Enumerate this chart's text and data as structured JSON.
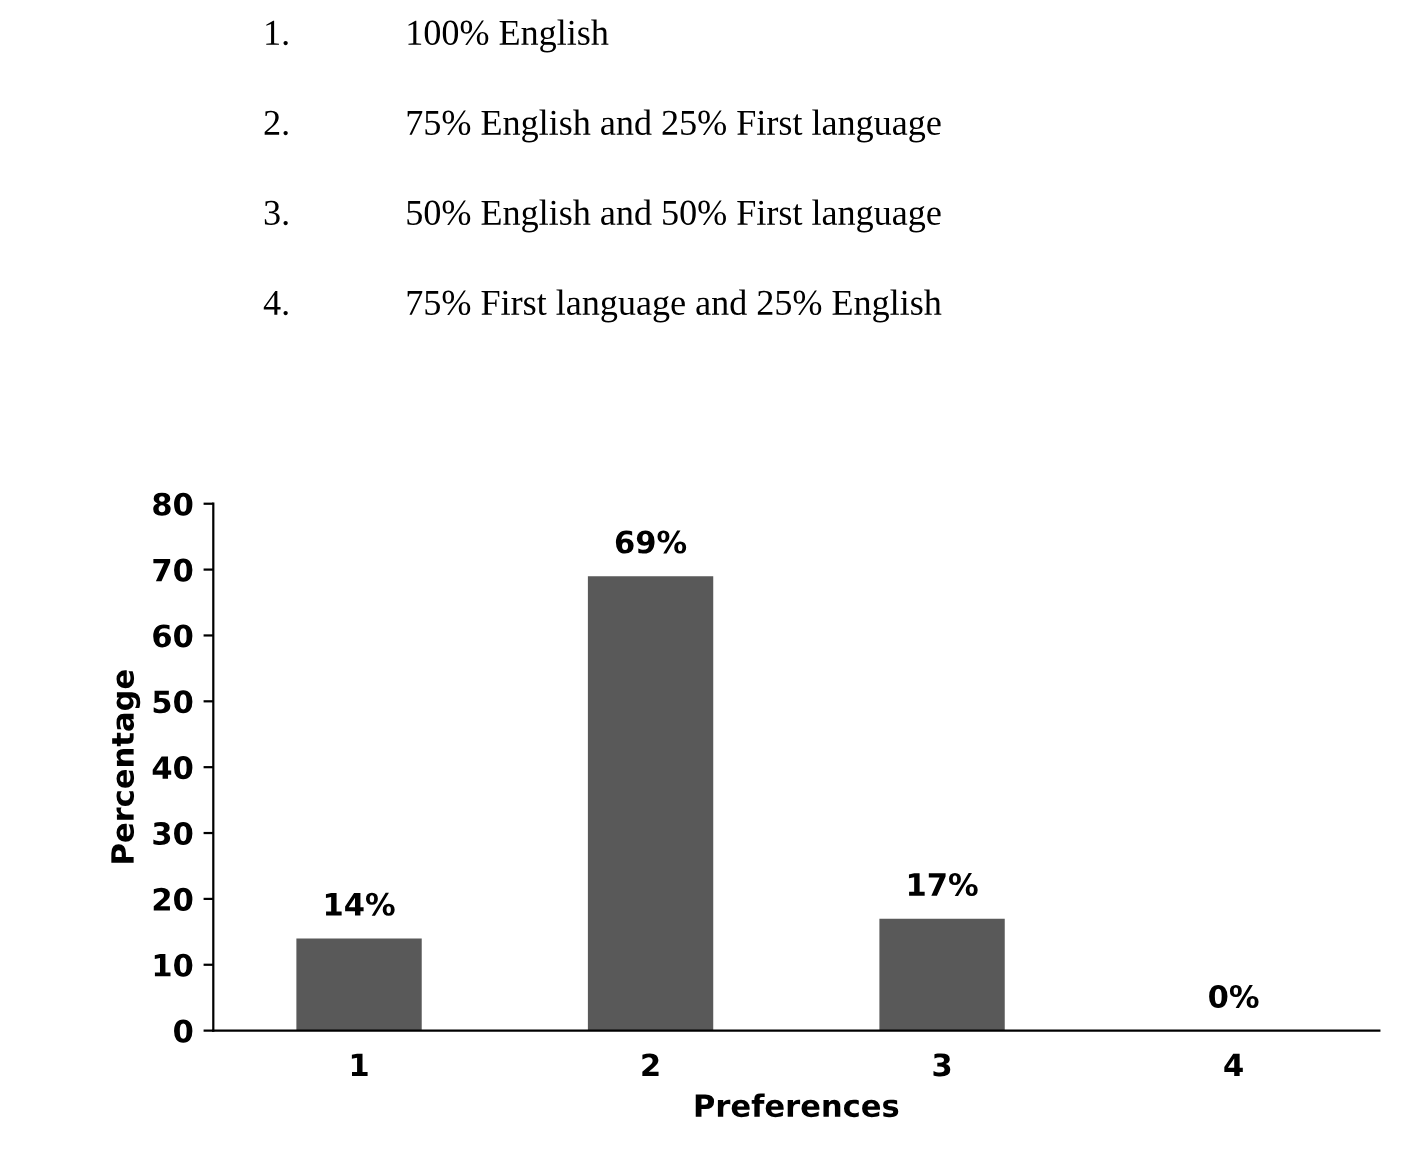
{
  "chart_data": {
    "type": "bar",
    "xlabel": "Preferences",
    "ylabel": "Percentage",
    "annotations": [
      "1.\t100% English",
      "2.\t75% English and 25% First language",
      "3.\t50% English and 50% First language",
      "4.\t75% First language and 25% English"
    ],
    "categories": [
      "1",
      "2",
      "3",
      "4"
    ],
    "values": [
      14,
      69,
      17,
      0
    ],
    "value_labels": [
      "14%",
      "69%",
      "17%",
      "0%"
    ],
    "color": "#595959",
    "ylim": [
      0,
      80
    ],
    "yticks": [
      0,
      10,
      20,
      30,
      40,
      50,
      60,
      70,
      80
    ],
    "grid": false,
    "legend": false
  }
}
